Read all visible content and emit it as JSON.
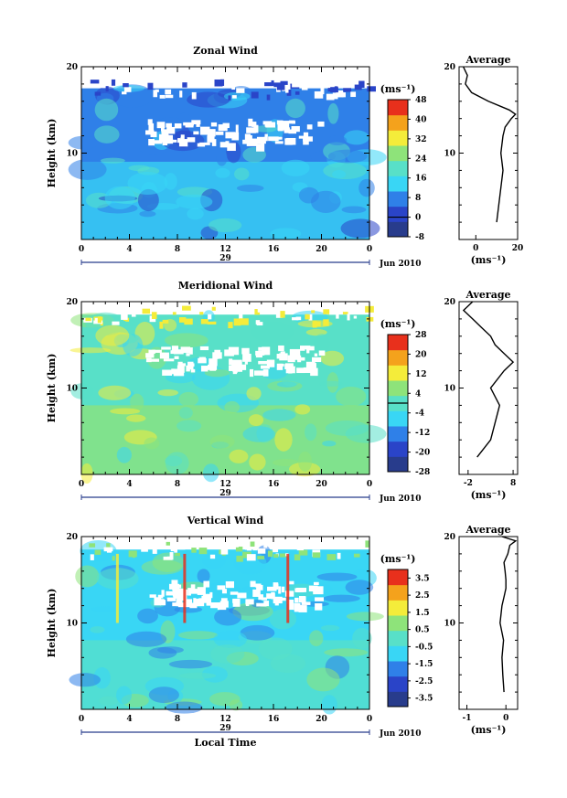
{
  "colors": {
    "sky": "#39d6f5",
    "blue": "#2f80e8",
    "deep_blue": "#2a44c8",
    "teal": "#58e0c8",
    "green": "#8ee37a",
    "yellow": "#f4ec3a",
    "orange": "#f4a21c",
    "red": "#e8301c",
    "white": "#ffffff",
    "navy": "#283c8c"
  },
  "chart_data": [
    {
      "type": "heatmap",
      "title": "Zonal Wind",
      "ylabel": "Height (km)",
      "ylim": [
        0,
        20
      ],
      "y_ticks": [
        10,
        20
      ],
      "xlim": [
        0,
        24
      ],
      "x_ticks": [
        "0",
        "4",
        "8",
        "12",
        "16",
        "20",
        "0"
      ],
      "date_day": "29",
      "date_month": "Jun 2010",
      "colorbar": {
        "unit": "(ms⁻¹)",
        "ticks": [
          "48",
          "40",
          "32",
          "24",
          "16",
          "8",
          "0",
          "-8"
        ],
        "range": [
          -8,
          48
        ],
        "zero_contour": 0
      },
      "profile": {
        "title": "Average",
        "unit": "(ms⁻¹)",
        "x_ticks": [
          "0",
          "20"
        ],
        "xlim": [
          -8,
          20
        ],
        "y_ticks": [
          10,
          20
        ],
        "heights": [
          2,
          4,
          6,
          8,
          10,
          12,
          13,
          14,
          14.5,
          15,
          16,
          17,
          18,
          19,
          20
        ],
        "values": [
          10,
          11,
          12,
          13,
          12,
          13,
          14,
          17,
          19,
          16,
          6,
          -2,
          -5,
          -4,
          -6
        ]
      }
    },
    {
      "type": "heatmap",
      "title": "Meridional Wind",
      "ylabel": "Height (km)",
      "ylim": [
        0,
        20
      ],
      "y_ticks": [
        10,
        20
      ],
      "xlim": [
        0,
        24
      ],
      "x_ticks": [
        "0",
        "4",
        "8",
        "12",
        "16",
        "20",
        "0"
      ],
      "date_day": "29",
      "date_month": "Jun 2010",
      "colorbar": {
        "unit": "(ms⁻¹)",
        "ticks": [
          "28",
          "20",
          "12",
          "4",
          "-4",
          "-12",
          "-20",
          "-28"
        ],
        "range": [
          -28,
          28
        ],
        "zero_contour": 0
      },
      "profile": {
        "title": "Average",
        "unit": "(ms⁻¹)",
        "x_ticks": [
          "-2",
          "8"
        ],
        "xlim": [
          -4,
          9
        ],
        "y_ticks": [
          10,
          20
        ],
        "heights": [
          2,
          4,
          6,
          8,
          10,
          12,
          13,
          14,
          15,
          16,
          17,
          18,
          19,
          20
        ],
        "values": [
          0,
          3,
          4,
          5,
          3,
          6,
          8,
          6,
          4,
          3,
          1,
          -1,
          -3,
          -1
        ]
      }
    },
    {
      "type": "heatmap",
      "title": "Vertical Wind",
      "ylabel": "Height (km)",
      "xlabel": "Local Time",
      "ylim": [
        0,
        20
      ],
      "y_ticks": [
        10,
        20
      ],
      "xlim": [
        0,
        24
      ],
      "x_ticks": [
        "0",
        "4",
        "8",
        "12",
        "16",
        "20",
        "0"
      ],
      "date_day": "29",
      "date_month": "Jun 2010",
      "colorbar": {
        "unit": "(ms⁻¹)",
        "ticks": [
          "3.5",
          "2.5",
          "1.5",
          "0.5",
          "-0.5",
          "-1.5",
          "-2.5",
          "-3.5"
        ],
        "range": [
          -4,
          4
        ]
      },
      "profile": {
        "title": "Average",
        "unit": "(ms⁻¹)",
        "x_ticks": [
          "-1",
          "0"
        ],
        "xlim": [
          -1.2,
          0.3
        ],
        "y_ticks": [
          10,
          20
        ],
        "heights": [
          2,
          4,
          6,
          8,
          10,
          12,
          13,
          14,
          15,
          16,
          17,
          18,
          19,
          19.5,
          20
        ],
        "values": [
          -0.05,
          -0.08,
          -0.1,
          -0.06,
          -0.15,
          -0.1,
          -0.05,
          0.0,
          0.0,
          -0.02,
          -0.05,
          0.05,
          0.1,
          0.25,
          -0.1
        ]
      }
    }
  ]
}
